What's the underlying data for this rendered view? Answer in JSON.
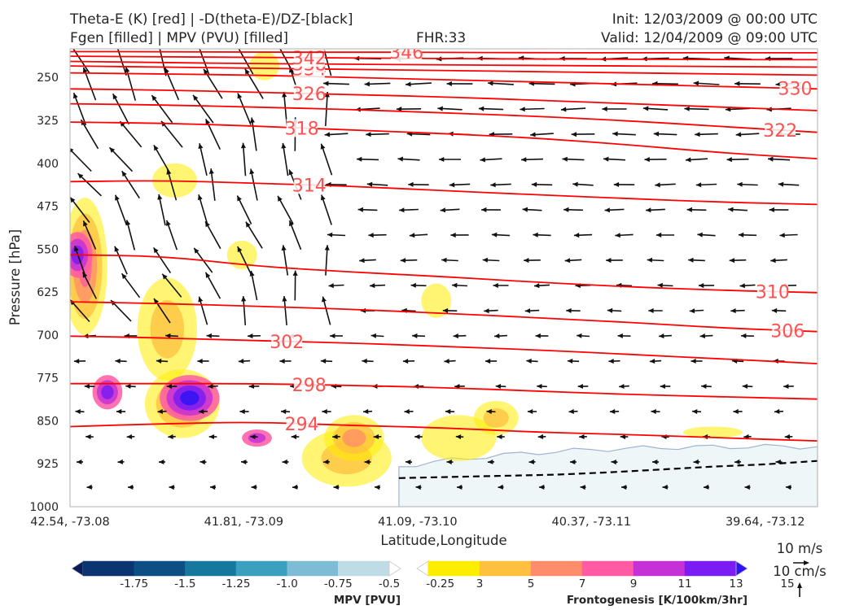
{
  "header": {
    "title_line1": "Theta-E (K) [red] | -D(theta-E)/DZ-[black]",
    "title_line2": "Fgen [filled] | MPV (PVU) [filled]",
    "fhr": "FHR:33",
    "init": "Init: 12/03/2009 @ 00:00 UTC",
    "valid": "Valid: 12/04/2009 @ 09:00 UTC"
  },
  "chart_data": {
    "type": "cross-section",
    "xlabel": "Latitude,Longitude",
    "ylabel": "Pressure [hPa]",
    "x_ticks": [
      "42.54, -73.08",
      "41.81, -73.09",
      "41.09, -73.10",
      "40.37, -73.11",
      "39.64, -73.12"
    ],
    "y_ticks": [
      250,
      325,
      400,
      475,
      550,
      625,
      700,
      775,
      850,
      925,
      1000
    ],
    "ylim": [
      1000,
      200
    ],
    "theta_e_contours": [
      {
        "value": 294,
        "levels": [
          860,
          855,
          852,
          858,
          862,
          870,
          874,
          880,
          885
        ]
      },
      {
        "value": 298,
        "levels": [
          785,
          785,
          785,
          788,
          792,
          798,
          804,
          808,
          812
        ]
      },
      {
        "value": 302,
        "levels": [
          702,
          705,
          710,
          714,
          720,
          726,
          734,
          742,
          750
        ]
      },
      {
        "value": 306,
        "levels": [
          642,
          645,
          650,
          655,
          662,
          670,
          678,
          688,
          694
        ]
      },
      {
        "value": 310,
        "levels": [
          560,
          562,
          580,
          590,
          598,
          608,
          616,
          622,
          626
        ]
      },
      {
        "value": 314,
        "levels": [
          432,
          430,
          435,
          440,
          448,
          455,
          462,
          468,
          472
        ]
      },
      {
        "value": 318,
        "levels": [
          328,
          330,
          335,
          342,
          348,
          356,
          368,
          382,
          392
        ]
      },
      {
        "value": 322,
        "levels": [
          296,
          298,
          302,
          306,
          312,
          318,
          326,
          336,
          346
        ]
      },
      {
        "value": 326,
        "levels": [
          270,
          272,
          276,
          280,
          284,
          290,
          296,
          302,
          308
        ]
      },
      {
        "value": 330,
        "levels": [
          242,
          244,
          246,
          250,
          254,
          258,
          262,
          266,
          270
        ]
      },
      {
        "value": 334,
        "levels": [
          230,
          232,
          234,
          236,
          238,
          240,
          242,
          244,
          246
        ]
      },
      {
        "value": 338,
        "levels": [
          222,
          224,
          226,
          227,
          228,
          229,
          230,
          231,
          232
        ]
      },
      {
        "value": 342,
        "levels": [
          213,
          214,
          215,
          216,
          217,
          218,
          218,
          219,
          219
        ]
      },
      {
        "value": 346,
        "levels": [
          205,
          205,
          206,
          206,
          206,
          207,
          207,
          207,
          207
        ]
      }
    ],
    "fgen_blobs": [
      {
        "x": 0.02,
        "p": 580,
        "rx": 0.03,
        "rp": 120,
        "v": 9
      },
      {
        "x": 0.13,
        "p": 690,
        "rx": 0.04,
        "rp": 90,
        "v": 5
      },
      {
        "x": 0.15,
        "p": 820,
        "rx": 0.05,
        "rp": 60,
        "v": 7
      },
      {
        "x": 0.14,
        "p": 430,
        "rx": 0.03,
        "rp": 30,
        "v": 3
      },
      {
        "x": 0.26,
        "p": 230,
        "rx": 0.02,
        "rp": 25,
        "v": 3
      },
      {
        "x": 0.37,
        "p": 915,
        "rx": 0.06,
        "rp": 50,
        "v": 5
      },
      {
        "x": 0.38,
        "p": 880,
        "rx": 0.04,
        "rp": 40,
        "v": 7
      },
      {
        "x": 0.49,
        "p": 640,
        "rx": 0.02,
        "rp": 30,
        "v": 3
      },
      {
        "x": 0.52,
        "p": 880,
        "rx": 0.05,
        "rp": 40,
        "v": 3
      },
      {
        "x": 0.57,
        "p": 845,
        "rx": 0.03,
        "rp": 30,
        "v": 5
      },
      {
        "x": 0.86,
        "p": 870,
        "rx": 0.04,
        "rp": 10,
        "v": 3
      },
      {
        "x": 0.23,
        "p": 560,
        "rx": 0.02,
        "rp": 25,
        "v": 3
      }
    ],
    "mpv_positive_blobs": [
      {
        "x": 0.01,
        "p": 560,
        "rx": 0.02,
        "rp": 40,
        "v": 13
      },
      {
        "x": 0.05,
        "p": 800,
        "rx": 0.02,
        "rp": 30,
        "v": 13
      },
      {
        "x": 0.16,
        "p": 810,
        "rx": 0.04,
        "rp": 40,
        "v": 15
      },
      {
        "x": 0.25,
        "p": 880,
        "rx": 0.02,
        "rp": 15,
        "v": 11
      }
    ],
    "mpv_negative_region": {
      "x_start": 0.44,
      "x_end": 1.0,
      "p_top": 895,
      "v": -0.25
    },
    "stability_dashed_levels": [
      950,
      948,
      946,
      944,
      940,
      935,
      930,
      926,
      920
    ],
    "mpv_colorbar": {
      "title": "MPV [PVU]",
      "labels": [
        "-1.75",
        "-1.5",
        "-1.25",
        "-1.0",
        "-0.75",
        "-0.5",
        "-0.25"
      ],
      "colors": [
        "#0a1c5a",
        "#0b3570",
        "#0d4f85",
        "#17789e",
        "#3b9fbe",
        "#7dbcd4",
        "#bfdce6",
        "#ffffff"
      ]
    },
    "fgen_colorbar": {
      "title": "Frontogenesis [K/100km/3hr]",
      "labels": [
        "3",
        "5",
        "7",
        "9",
        "11",
        "13",
        "15"
      ],
      "colors": [
        "#ffffff",
        "#ffed00",
        "#ffbf3f",
        "#ff8c6a",
        "#ff5aa3",
        "#c531d6",
        "#7a1cf2",
        "#3013f2"
      ]
    },
    "vector_key": {
      "horizontal": "10 m/s",
      "vertical": "10 cm/s"
    },
    "colors": {
      "theta_e": "#ff0000",
      "theta_label": "#ff5050",
      "vector": "#111111"
    }
  }
}
